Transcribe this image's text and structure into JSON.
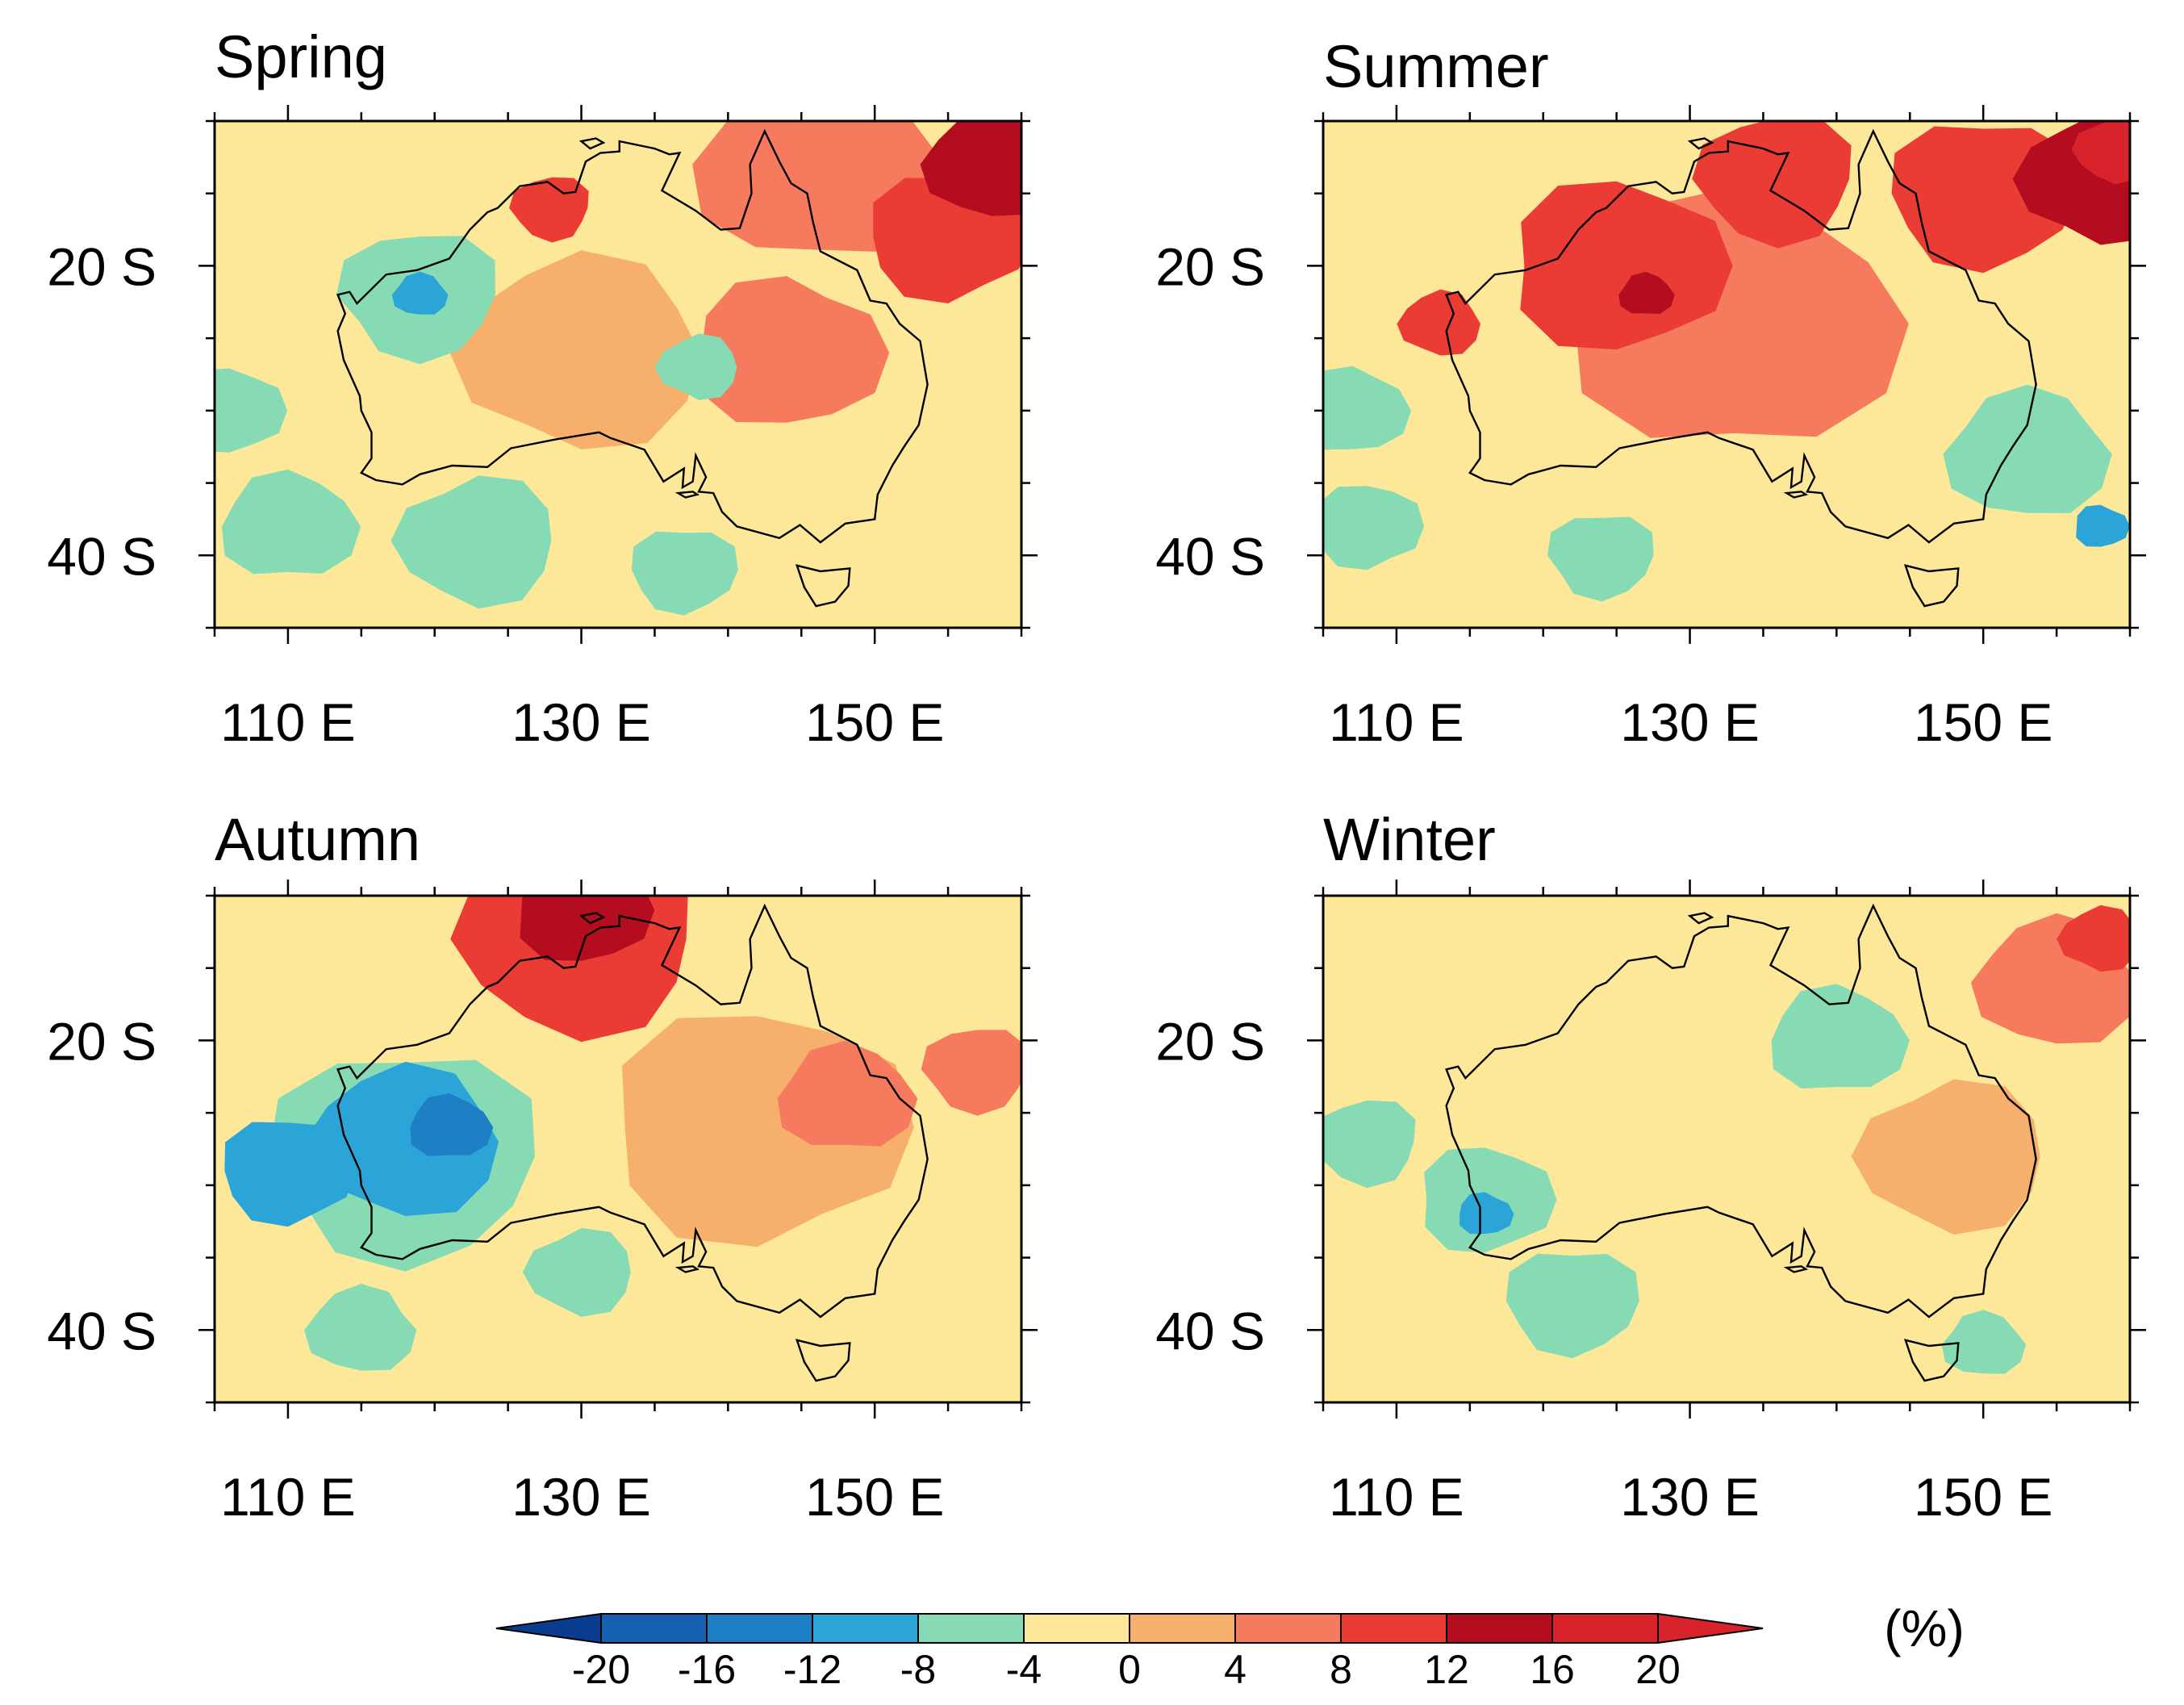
{
  "chart_data": {
    "type": "map-filled-contour",
    "unit_label": "(%)",
    "color_levels": [
      -20,
      -16,
      -12,
      -8,
      -4,
      0,
      4,
      8,
      12,
      16,
      20
    ],
    "colors": [
      "#0a3d8f",
      "#1560b0",
      "#1f7fc4",
      "#2ba4d8",
      "#86dbb4",
      "#fde89a",
      "#f6b06c",
      "#f57a5e",
      "#ea3b34",
      "#b30d1f",
      "#d9232b"
    ],
    "lon_range": [
      105,
      160
    ],
    "lat_range": [
      -45,
      -10
    ],
    "x_ticks": [
      {
        "value": 110,
        "label": "110 E"
      },
      {
        "value": 130,
        "label": "130 E"
      },
      {
        "value": 150,
        "label": "150 E"
      }
    ],
    "y_ticks": [
      {
        "value": -20,
        "label": "20 S"
      },
      {
        "value": -40,
        "label": "40 S"
      }
    ],
    "panels": [
      {
        "title": "Spring",
        "blobs": [
          {
            "lon": 130,
            "lat": -26,
            "r": 9,
            "level": 4
          },
          {
            "lon": 144,
            "lat": -26,
            "r": 7,
            "level": 8
          },
          {
            "lon": 146,
            "lat": -13,
            "r": 9,
            "level": 8
          },
          {
            "lon": 158,
            "lat": -13,
            "r": 5,
            "level": 16
          },
          {
            "lon": 155,
            "lat": -18,
            "r": 6,
            "level": 12
          },
          {
            "lon": 128,
            "lat": -16,
            "r": 3,
            "level": 12
          },
          {
            "lon": 119,
            "lat": -22,
            "r": 6,
            "level": -4
          },
          {
            "lon": 106,
            "lat": -30,
            "r": 4,
            "level": -4
          },
          {
            "lon": 110,
            "lat": -38,
            "r": 5,
            "level": -4
          },
          {
            "lon": 123,
            "lat": -39,
            "r": 6,
            "level": -4
          },
          {
            "lon": 137,
            "lat": -41,
            "r": 4,
            "level": -4
          },
          {
            "lon": 138,
            "lat": -27,
            "r": 3,
            "level": -4
          },
          {
            "lon": 119,
            "lat": -22,
            "r": 2,
            "level": -8
          }
        ]
      },
      {
        "title": "Summer",
        "blobs": [
          {
            "lon": 133,
            "lat": -24,
            "r": 12,
            "level": 8
          },
          {
            "lon": 125,
            "lat": -20,
            "r": 8,
            "level": 12
          },
          {
            "lon": 136,
            "lat": -14,
            "r": 6,
            "level": 12
          },
          {
            "lon": 150,
            "lat": -15,
            "r": 7,
            "level": 12
          },
          {
            "lon": 158,
            "lat": -14,
            "r": 6,
            "level": 16
          },
          {
            "lon": 159,
            "lat": -12,
            "r": 3,
            "level": 20
          },
          {
            "lon": 127,
            "lat": -22,
            "r": 2,
            "level": 16
          },
          {
            "lon": 113,
            "lat": -24,
            "r": 3,
            "level": 12
          },
          {
            "lon": 107,
            "lat": -30,
            "r": 4,
            "level": -4
          },
          {
            "lon": 108,
            "lat": -38,
            "r": 4,
            "level": -4
          },
          {
            "lon": 153,
            "lat": -33,
            "r": 6,
            "level": -4
          },
          {
            "lon": 124,
            "lat": -40,
            "r": 4,
            "level": -4
          },
          {
            "lon": 158,
            "lat": -38,
            "r": 2,
            "level": -8
          }
        ]
      },
      {
        "title": "Autumn",
        "blobs": [
          {
            "lon": 142,
            "lat": -26,
            "r": 11,
            "level": 4
          },
          {
            "lon": 148,
            "lat": -24,
            "r": 5,
            "level": 8
          },
          {
            "lon": 130,
            "lat": -13,
            "r": 9,
            "level": 12
          },
          {
            "lon": 130,
            "lat": -11,
            "r": 5,
            "level": 16
          },
          {
            "lon": 157,
            "lat": -22,
            "r": 4,
            "level": 8
          },
          {
            "lon": 118,
            "lat": -28,
            "r": 10,
            "level": -4
          },
          {
            "lon": 118,
            "lat": -27,
            "r": 7,
            "level": -8
          },
          {
            "lon": 110,
            "lat": -29,
            "r": 5,
            "level": -8
          },
          {
            "lon": 121,
            "lat": -26,
            "r": 3,
            "level": -12
          },
          {
            "lon": 130,
            "lat": -36,
            "r": 4,
            "level": -4
          },
          {
            "lon": 115,
            "lat": -40,
            "r": 4,
            "level": -4
          }
        ]
      },
      {
        "title": "Winter",
        "blobs": [
          {
            "lon": 130,
            "lat": -28,
            "r": 11,
            "level": 0
          },
          {
            "lon": 148,
            "lat": -28,
            "r": 7,
            "level": 4
          },
          {
            "lon": 155,
            "lat": -16,
            "r": 6,
            "level": 8
          },
          {
            "lon": 158,
            "lat": -13,
            "r": 3,
            "level": 12
          },
          {
            "lon": 140,
            "lat": -20,
            "r": 5,
            "level": -4
          },
          {
            "lon": 116,
            "lat": -31,
            "r": 5,
            "level": -4
          },
          {
            "lon": 116,
            "lat": -32,
            "r": 2,
            "level": -8
          },
          {
            "lon": 122,
            "lat": -38,
            "r": 5,
            "level": -4
          },
          {
            "lon": 108,
            "lat": -27,
            "r": 4,
            "level": -4
          },
          {
            "lon": 150,
            "lat": -41,
            "r": 3,
            "level": -4
          }
        ]
      }
    ]
  },
  "colorbar": {
    "tick_labels": [
      "-20",
      "-16",
      "-12",
      "-8",
      "-4",
      "0",
      "4",
      "8",
      "12",
      "16",
      "20"
    ]
  }
}
